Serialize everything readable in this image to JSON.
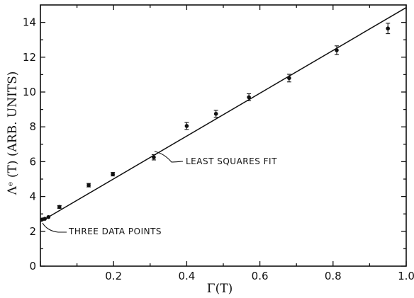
{
  "chart_data": {
    "type": "scatter",
    "title": "",
    "xlabel": "Γ(T)",
    "ylabel": "Λᵉ (T) (ARB. UNITS)",
    "xlim": [
      0,
      1.0
    ],
    "ylim": [
      0,
      15
    ],
    "x_ticks": [
      0,
      0.2,
      0.4,
      0.6,
      0.8,
      1.0
    ],
    "x_tick_labels": [
      "",
      "0.2",
      "0.4",
      "0.6",
      "0.8",
      "1.0"
    ],
    "y_ticks": [
      0,
      2,
      4,
      6,
      8,
      10,
      12,
      14
    ],
    "y_tick_labels": [
      "0",
      "2",
      "4",
      "6",
      "8",
      "10",
      "12",
      "14"
    ],
    "grid": false,
    "series": [
      {
        "x": [
          0.005,
          0.012,
          0.022,
          0.052,
          0.132,
          0.198,
          0.31,
          0.4,
          0.48,
          0.57,
          0.68,
          0.81,
          0.95
        ],
        "y": [
          2.68,
          2.72,
          2.82,
          3.4,
          4.65,
          5.28,
          6.25,
          8.05,
          8.75,
          9.7,
          10.8,
          12.4,
          13.65
        ],
        "yerr": [
          0,
          0,
          0,
          0.08,
          0.1,
          0.1,
          0.15,
          0.2,
          0.2,
          0.2,
          0.22,
          0.25,
          0.3
        ]
      }
    ],
    "fit_line": {
      "x": [
        0,
        1.0
      ],
      "y": [
        2.55,
        14.85
      ]
    },
    "annotations": [
      {
        "text": "LEAST SQUARES FIT",
        "x": 0.31,
        "y": 6.5
      },
      {
        "text": "THREE DATA POINTS",
        "x": 0.012,
        "y": 2.7
      }
    ]
  }
}
